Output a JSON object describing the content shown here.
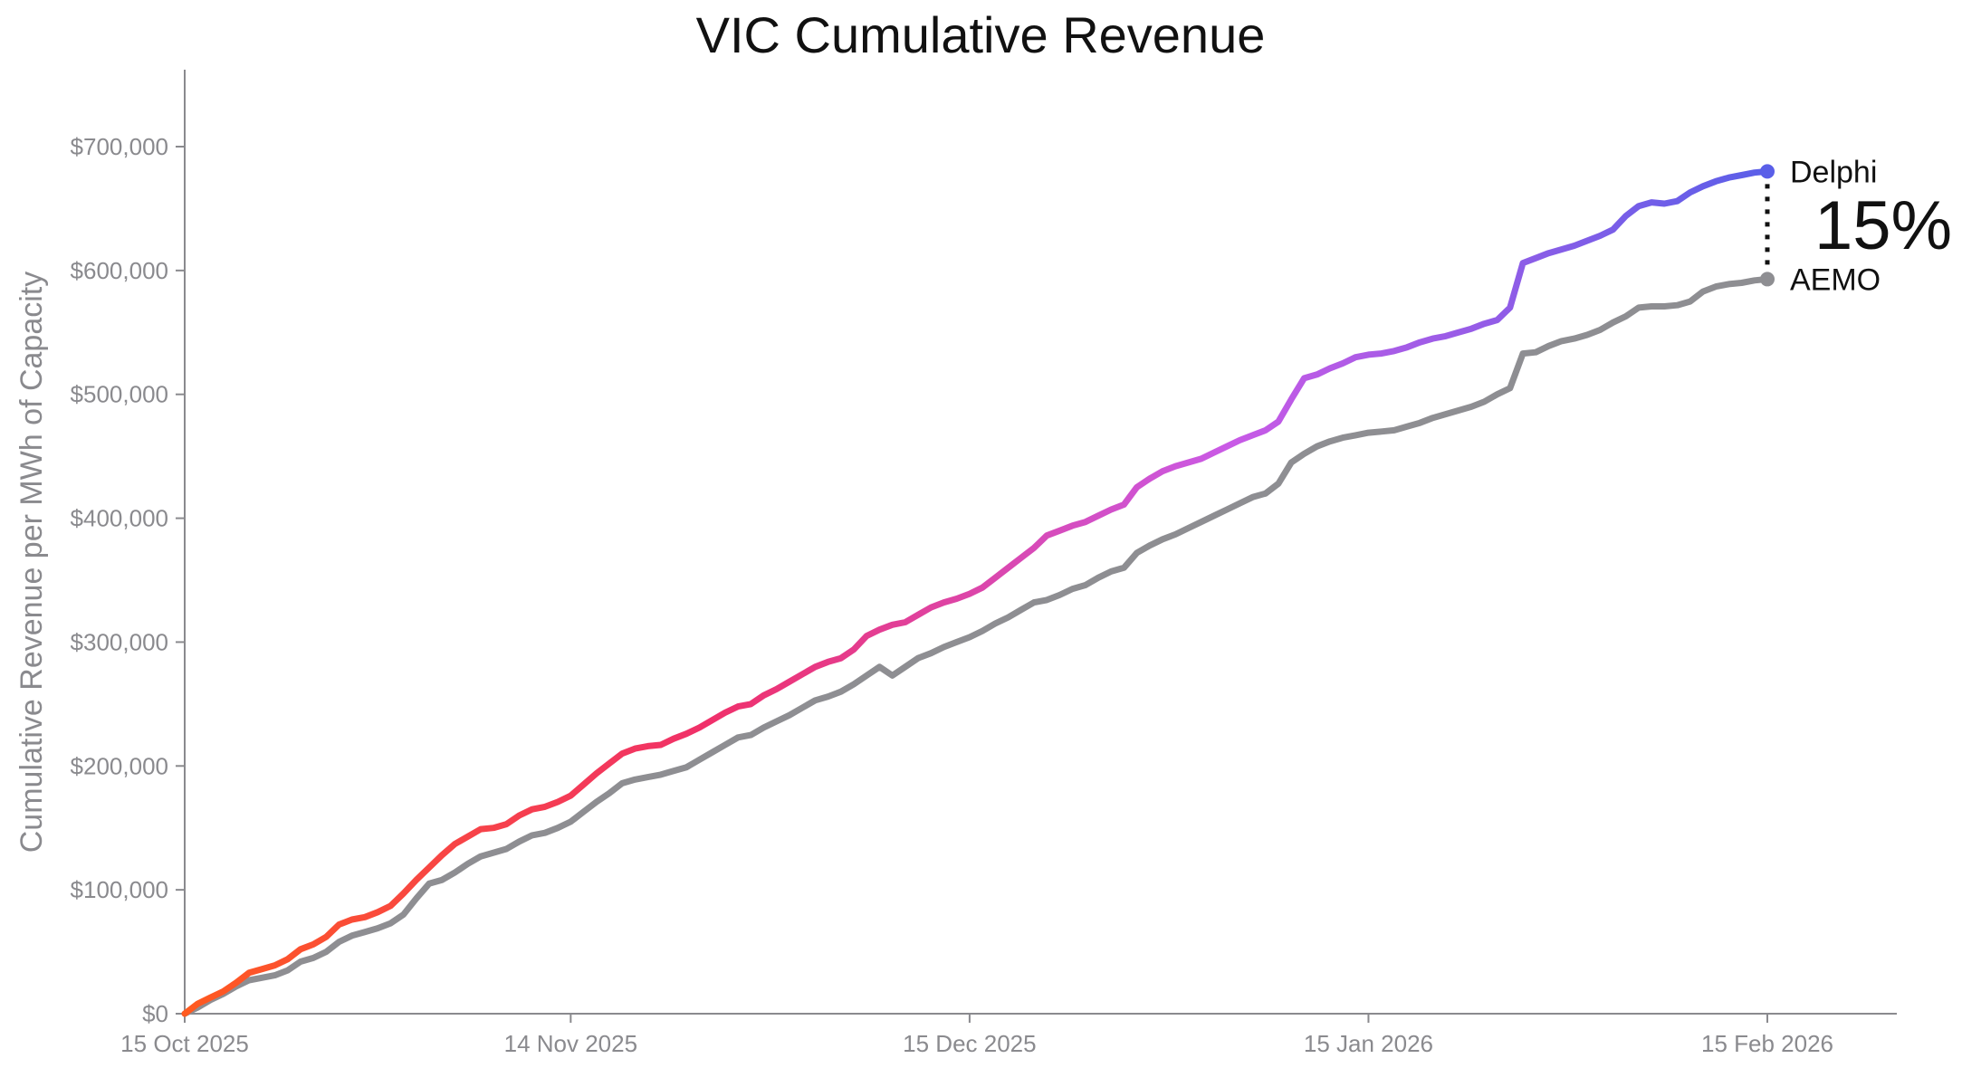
{
  "chart_data": {
    "type": "line",
    "title": "VIC Cumulative Revenue",
    "xlabel": "",
    "ylabel": "Cumulative Revenue per MWh of Capacity",
    "xlim": [
      "2025-10-15",
      "2026-02-24"
    ],
    "ylim": [
      0,
      760000
    ],
    "grid": false,
    "legend": "inline-end-labels",
    "x_ticks": [
      {
        "date": "2025-10-15",
        "label": "15 Oct 2025"
      },
      {
        "date": "2025-11-14",
        "label": "14 Nov 2025"
      },
      {
        "date": "2025-12-15",
        "label": "15 Dec 2025"
      },
      {
        "date": "2026-01-15",
        "label": "15 Jan 2026"
      },
      {
        "date": "2026-02-15",
        "label": "15 Feb 2026"
      }
    ],
    "y_ticks": [
      {
        "value": 0,
        "label": "$0"
      },
      {
        "value": 100000,
        "label": "$100,000"
      },
      {
        "value": 200000,
        "label": "$200,000"
      },
      {
        "value": 300000,
        "label": "$300,000"
      },
      {
        "value": 400000,
        "label": "$400,000"
      },
      {
        "value": 500000,
        "label": "$500,000"
      },
      {
        "value": 600000,
        "label": "$600,000"
      },
      {
        "value": 700000,
        "label": "$700,000"
      }
    ],
    "annotation": {
      "text": "15%"
    },
    "series": [
      {
        "name": "Delphi",
        "color_gradient": [
          "#ff5a1f",
          "#f0306a",
          "#c95ae6",
          "#5a5fe8"
        ],
        "end_color": "#5a5fe8",
        "points": [
          [
            "2025-10-15",
            0
          ],
          [
            "2025-10-16",
            8000
          ],
          [
            "2025-10-17",
            13000
          ],
          [
            "2025-10-18",
            18000
          ],
          [
            "2025-10-19",
            25000
          ],
          [
            "2025-10-20",
            33000
          ],
          [
            "2025-10-21",
            36000
          ],
          [
            "2025-10-22",
            39000
          ],
          [
            "2025-10-23",
            44000
          ],
          [
            "2025-10-24",
            52000
          ],
          [
            "2025-10-25",
            56000
          ],
          [
            "2025-10-26",
            62000
          ],
          [
            "2025-10-27",
            72000
          ],
          [
            "2025-10-28",
            76000
          ],
          [
            "2025-10-29",
            78000
          ],
          [
            "2025-10-30",
            82000
          ],
          [
            "2025-10-31",
            87000
          ],
          [
            "2025-11-01",
            97000
          ],
          [
            "2025-11-02",
            108000
          ],
          [
            "2025-11-03",
            118000
          ],
          [
            "2025-11-04",
            128000
          ],
          [
            "2025-11-05",
            137000
          ],
          [
            "2025-11-06",
            143000
          ],
          [
            "2025-11-07",
            149000
          ],
          [
            "2025-11-08",
            150000
          ],
          [
            "2025-11-09",
            153000
          ],
          [
            "2025-11-10",
            160000
          ],
          [
            "2025-11-11",
            165000
          ],
          [
            "2025-11-12",
            167000
          ],
          [
            "2025-11-13",
            171000
          ],
          [
            "2025-11-14",
            176000
          ],
          [
            "2025-11-15",
            185000
          ],
          [
            "2025-11-16",
            194000
          ],
          [
            "2025-11-17",
            202000
          ],
          [
            "2025-11-18",
            210000
          ],
          [
            "2025-11-19",
            214000
          ],
          [
            "2025-11-20",
            216000
          ],
          [
            "2025-11-21",
            217000
          ],
          [
            "2025-11-22",
            222000
          ],
          [
            "2025-11-23",
            226000
          ],
          [
            "2025-11-24",
            231000
          ],
          [
            "2025-11-25",
            237000
          ],
          [
            "2025-11-26",
            243000
          ],
          [
            "2025-11-27",
            248000
          ],
          [
            "2025-11-28",
            250000
          ],
          [
            "2025-11-29",
            257000
          ],
          [
            "2025-11-30",
            262000
          ],
          [
            "2025-12-01",
            268000
          ],
          [
            "2025-12-02",
            274000
          ],
          [
            "2025-12-03",
            280000
          ],
          [
            "2025-12-04",
            284000
          ],
          [
            "2025-12-05",
            287000
          ],
          [
            "2025-12-06",
            294000
          ],
          [
            "2025-12-07",
            305000
          ],
          [
            "2025-12-08",
            310000
          ],
          [
            "2025-12-09",
            314000
          ],
          [
            "2025-12-10",
            316000
          ],
          [
            "2025-12-11",
            322000
          ],
          [
            "2025-12-12",
            328000
          ],
          [
            "2025-12-13",
            332000
          ],
          [
            "2025-12-14",
            335000
          ],
          [
            "2025-12-15",
            339000
          ],
          [
            "2025-12-16",
            344000
          ],
          [
            "2025-12-17",
            352000
          ],
          [
            "2025-12-18",
            360000
          ],
          [
            "2025-12-19",
            368000
          ],
          [
            "2025-12-20",
            376000
          ],
          [
            "2025-12-21",
            386000
          ],
          [
            "2025-12-22",
            390000
          ],
          [
            "2025-12-23",
            394000
          ],
          [
            "2025-12-24",
            397000
          ],
          [
            "2025-12-25",
            402000
          ],
          [
            "2025-12-26",
            407000
          ],
          [
            "2025-12-27",
            411000
          ],
          [
            "2025-12-28",
            425000
          ],
          [
            "2025-12-29",
            432000
          ],
          [
            "2025-12-30",
            438000
          ],
          [
            "2025-12-31",
            442000
          ],
          [
            "2026-01-01",
            445000
          ],
          [
            "2026-01-02",
            448000
          ],
          [
            "2026-01-03",
            453000
          ],
          [
            "2026-01-04",
            458000
          ],
          [
            "2026-01-05",
            463000
          ],
          [
            "2026-01-06",
            467000
          ],
          [
            "2026-01-07",
            471000
          ],
          [
            "2026-01-08",
            478000
          ],
          [
            "2026-01-09",
            496000
          ],
          [
            "2026-01-10",
            513000
          ],
          [
            "2026-01-11",
            516000
          ],
          [
            "2026-01-12",
            521000
          ],
          [
            "2026-01-13",
            525000
          ],
          [
            "2026-01-14",
            530000
          ],
          [
            "2026-01-15",
            532000
          ],
          [
            "2026-01-16",
            533000
          ],
          [
            "2026-01-17",
            535000
          ],
          [
            "2026-01-18",
            538000
          ],
          [
            "2026-01-19",
            542000
          ],
          [
            "2026-01-20",
            545000
          ],
          [
            "2026-01-21",
            547000
          ],
          [
            "2026-01-22",
            550000
          ],
          [
            "2026-01-23",
            553000
          ],
          [
            "2026-01-24",
            557000
          ],
          [
            "2026-01-25",
            560000
          ],
          [
            "2026-01-26",
            570000
          ],
          [
            "2026-01-27",
            606000
          ],
          [
            "2026-01-28",
            610000
          ],
          [
            "2026-01-29",
            614000
          ],
          [
            "2026-01-30",
            617000
          ],
          [
            "2026-01-31",
            620000
          ],
          [
            "2026-02-01",
            624000
          ],
          [
            "2026-02-02",
            628000
          ],
          [
            "2026-02-03",
            633000
          ],
          [
            "2026-02-04",
            644000
          ],
          [
            "2026-02-05",
            652000
          ],
          [
            "2026-02-06",
            655000
          ],
          [
            "2026-02-07",
            654000
          ],
          [
            "2026-02-08",
            656000
          ],
          [
            "2026-02-09",
            663000
          ],
          [
            "2026-02-10",
            668000
          ],
          [
            "2026-02-11",
            672000
          ],
          [
            "2026-02-12",
            675000
          ],
          [
            "2026-02-13",
            677000
          ],
          [
            "2026-02-14",
            679000
          ],
          [
            "2026-02-15",
            680000
          ]
        ]
      },
      {
        "name": "AEMO",
        "color": "#8e8e92",
        "points": [
          [
            "2025-10-15",
            0
          ],
          [
            "2025-10-16",
            5000
          ],
          [
            "2025-10-17",
            11000
          ],
          [
            "2025-10-18",
            16000
          ],
          [
            "2025-10-19",
            22000
          ],
          [
            "2025-10-20",
            27000
          ],
          [
            "2025-10-21",
            29000
          ],
          [
            "2025-10-22",
            31000
          ],
          [
            "2025-10-23",
            35000
          ],
          [
            "2025-10-24",
            42000
          ],
          [
            "2025-10-25",
            45000
          ],
          [
            "2025-10-26",
            50000
          ],
          [
            "2025-10-27",
            58000
          ],
          [
            "2025-10-28",
            63000
          ],
          [
            "2025-10-29",
            66000
          ],
          [
            "2025-10-30",
            69000
          ],
          [
            "2025-10-31",
            73000
          ],
          [
            "2025-11-01",
            80000
          ],
          [
            "2025-11-02",
            93000
          ],
          [
            "2025-11-03",
            105000
          ],
          [
            "2025-11-04",
            108000
          ],
          [
            "2025-11-05",
            114000
          ],
          [
            "2025-11-06",
            121000
          ],
          [
            "2025-11-07",
            127000
          ],
          [
            "2025-11-08",
            130000
          ],
          [
            "2025-11-09",
            133000
          ],
          [
            "2025-11-10",
            139000
          ],
          [
            "2025-11-11",
            144000
          ],
          [
            "2025-11-12",
            146000
          ],
          [
            "2025-11-13",
            150000
          ],
          [
            "2025-11-14",
            155000
          ],
          [
            "2025-11-15",
            163000
          ],
          [
            "2025-11-16",
            171000
          ],
          [
            "2025-11-17",
            178000
          ],
          [
            "2025-11-18",
            186000
          ],
          [
            "2025-11-19",
            189000
          ],
          [
            "2025-11-20",
            191000
          ],
          [
            "2025-11-21",
            193000
          ],
          [
            "2025-11-22",
            196000
          ],
          [
            "2025-11-23",
            199000
          ],
          [
            "2025-11-24",
            205000
          ],
          [
            "2025-11-25",
            211000
          ],
          [
            "2025-11-26",
            217000
          ],
          [
            "2025-11-27",
            223000
          ],
          [
            "2025-11-28",
            225000
          ],
          [
            "2025-11-29",
            231000
          ],
          [
            "2025-11-30",
            236000
          ],
          [
            "2025-12-01",
            241000
          ],
          [
            "2025-12-02",
            247000
          ],
          [
            "2025-12-03",
            253000
          ],
          [
            "2025-12-04",
            256000
          ],
          [
            "2025-12-05",
            260000
          ],
          [
            "2025-12-06",
            266000
          ],
          [
            "2025-12-07",
            273000
          ],
          [
            "2025-12-08",
            280000
          ],
          [
            "2025-12-09",
            273000
          ],
          [
            "2025-12-10",
            280000
          ],
          [
            "2025-12-11",
            287000
          ],
          [
            "2025-12-12",
            291000
          ],
          [
            "2025-12-13",
            296000
          ],
          [
            "2025-12-14",
            300000
          ],
          [
            "2025-12-15",
            304000
          ],
          [
            "2025-12-16",
            309000
          ],
          [
            "2025-12-17",
            315000
          ],
          [
            "2025-12-18",
            320000
          ],
          [
            "2025-12-19",
            326000
          ],
          [
            "2025-12-20",
            332000
          ],
          [
            "2025-12-21",
            334000
          ],
          [
            "2025-12-22",
            338000
          ],
          [
            "2025-12-23",
            343000
          ],
          [
            "2025-12-24",
            346000
          ],
          [
            "2025-12-25",
            352000
          ],
          [
            "2025-12-26",
            357000
          ],
          [
            "2025-12-27",
            360000
          ],
          [
            "2025-12-28",
            372000
          ],
          [
            "2025-12-29",
            378000
          ],
          [
            "2025-12-30",
            383000
          ],
          [
            "2025-12-31",
            387000
          ],
          [
            "2026-01-01",
            392000
          ],
          [
            "2026-01-02",
            397000
          ],
          [
            "2026-01-03",
            402000
          ],
          [
            "2026-01-04",
            407000
          ],
          [
            "2026-01-05",
            412000
          ],
          [
            "2026-01-06",
            417000
          ],
          [
            "2026-01-07",
            420000
          ],
          [
            "2026-01-08",
            428000
          ],
          [
            "2026-01-09",
            445000
          ],
          [
            "2026-01-10",
            452000
          ],
          [
            "2026-01-11",
            458000
          ],
          [
            "2026-01-12",
            462000
          ],
          [
            "2026-01-13",
            465000
          ],
          [
            "2026-01-14",
            467000
          ],
          [
            "2026-01-15",
            469000
          ],
          [
            "2026-01-16",
            470000
          ],
          [
            "2026-01-17",
            471000
          ],
          [
            "2026-01-18",
            474000
          ],
          [
            "2026-01-19",
            477000
          ],
          [
            "2026-01-20",
            481000
          ],
          [
            "2026-01-21",
            484000
          ],
          [
            "2026-01-22",
            487000
          ],
          [
            "2026-01-23",
            490000
          ],
          [
            "2026-01-24",
            494000
          ],
          [
            "2026-01-25",
            500000
          ],
          [
            "2026-01-26",
            505000
          ],
          [
            "2026-01-27",
            533000
          ],
          [
            "2026-01-28",
            534000
          ],
          [
            "2026-01-29",
            539000
          ],
          [
            "2026-01-30",
            543000
          ],
          [
            "2026-01-31",
            545000
          ],
          [
            "2026-02-01",
            548000
          ],
          [
            "2026-02-02",
            552000
          ],
          [
            "2026-02-03",
            558000
          ],
          [
            "2026-02-04",
            563000
          ],
          [
            "2026-02-05",
            570000
          ],
          [
            "2026-02-06",
            571000
          ],
          [
            "2026-02-07",
            571000
          ],
          [
            "2026-02-08",
            572000
          ],
          [
            "2026-02-09",
            575000
          ],
          [
            "2026-02-10",
            583000
          ],
          [
            "2026-02-11",
            587000
          ],
          [
            "2026-02-12",
            589000
          ],
          [
            "2026-02-13",
            590000
          ],
          [
            "2026-02-14",
            592000
          ],
          [
            "2026-02-15",
            593000
          ]
        ]
      }
    ]
  }
}
